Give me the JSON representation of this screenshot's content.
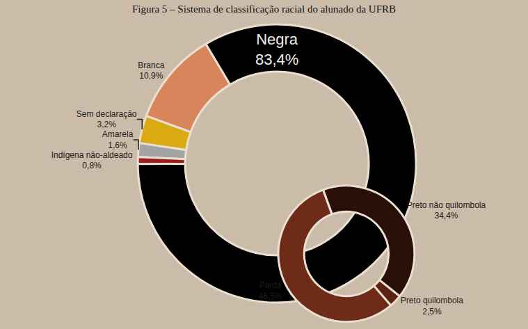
{
  "chart_data": [
    {
      "type": "pie",
      "title": "Figura 5 – Sistema de classificação racial do alunado da UFRB",
      "categories": [
        "Branca",
        "Sem declaração",
        "Amarela",
        "Indígena não-aldeado",
        "Negra"
      ],
      "values": [
        10.9,
        3.2,
        1.6,
        0.8,
        83.4
      ],
      "value_labels": [
        "10,9%",
        "3,2%",
        "1,6%",
        "0,8%",
        "83,4%"
      ],
      "colors": [
        "#d9855c",
        "#d9aa12",
        "#a3a3a3",
        "#9c1c1c",
        "#000000"
      ],
      "data_labels": true
    },
    {
      "type": "pie",
      "categories": [
        "Preto não quilombola",
        "Preto quilombola",
        "Parda"
      ],
      "values": [
        34.4,
        2.5,
        46.5
      ],
      "value_labels": [
        "34,4%",
        "2,5%",
        "46,5%"
      ],
      "colors": [
        "#2a0f08",
        "#5c2312",
        "#6e2b17"
      ],
      "data_labels": true
    }
  ]
}
